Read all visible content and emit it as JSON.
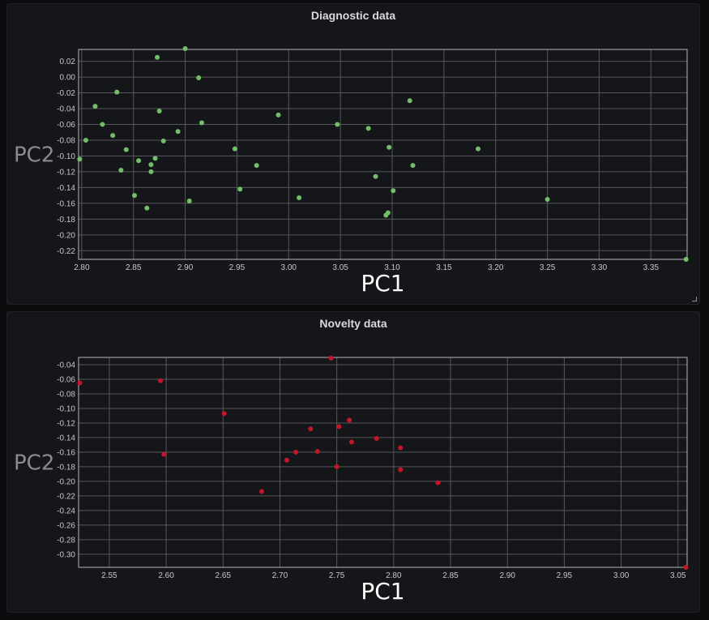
{
  "chart_data": [
    {
      "type": "scatter",
      "title": "Diagnostic data",
      "xlabel": "PC1",
      "ylabel": "PC2",
      "color": "#73bf69",
      "grid": true,
      "xlim": [
        2.797,
        3.385
      ],
      "ylim": [
        -0.231,
        0.035
      ],
      "xticks": [
        "2.80",
        "2.85",
        "2.90",
        "2.95",
        "3.00",
        "3.05",
        "3.10",
        "3.15",
        "3.20",
        "3.25",
        "3.30",
        "3.35"
      ],
      "yticks": [
        "0.02",
        "0.00",
        "-0.02",
        "-0.04",
        "-0.06",
        "-0.08",
        "-0.10",
        "-0.12",
        "-0.14",
        "-0.16",
        "-0.18",
        "-0.20",
        "-0.22"
      ],
      "x": [
        2.798,
        2.804,
        2.813,
        2.82,
        2.83,
        2.834,
        2.838,
        2.843,
        2.851,
        2.855,
        2.863,
        2.867,
        2.867,
        2.871,
        2.873,
        2.875,
        2.879,
        2.893,
        2.9,
        2.904,
        2.913,
        2.916,
        2.948,
        2.953,
        2.969,
        2.99,
        3.01,
        3.047,
        3.077,
        3.084,
        3.094,
        3.096,
        3.097,
        3.101,
        3.117,
        3.12,
        3.183,
        3.25,
        3.384
      ],
      "y": [
        -0.104,
        -0.08,
        -0.037,
        -0.06,
        -0.074,
        -0.019,
        -0.118,
        -0.092,
        -0.15,
        -0.106,
        -0.166,
        -0.111,
        -0.12,
        -0.103,
        0.025,
        -0.043,
        -0.081,
        -0.069,
        0.036,
        -0.157,
        -0.001,
        -0.058,
        -0.091,
        -0.142,
        -0.112,
        -0.048,
        -0.153,
        -0.06,
        -0.065,
        -0.126,
        -0.175,
        -0.172,
        -0.089,
        -0.144,
        -0.03,
        -0.112,
        -0.091,
        -0.155,
        -0.231
      ]
    },
    {
      "type": "scatter",
      "title": "Novelty data",
      "xlabel": "PC1",
      "ylabel": "PC2",
      "color": "#c4162a",
      "grid": true,
      "xlim": [
        2.523,
        3.058
      ],
      "ylim": [
        -0.318,
        -0.03
      ],
      "xticks": [
        "2.55",
        "2.60",
        "2.65",
        "2.70",
        "2.75",
        "2.80",
        "2.85",
        "2.90",
        "2.95",
        "3.00",
        "3.05"
      ],
      "yticks": [
        "-0.04",
        "-0.06",
        "-0.08",
        "-0.10",
        "-0.12",
        "-0.14",
        "-0.16",
        "-0.18",
        "-0.20",
        "-0.22",
        "-0.24",
        "-0.26",
        "-0.28",
        "-0.30"
      ],
      "x": [
        2.524,
        2.595,
        2.598,
        2.651,
        2.684,
        2.706,
        2.714,
        2.727,
        2.733,
        2.745,
        2.75,
        2.752,
        2.761,
        2.763,
        2.785,
        2.806,
        2.806,
        2.839,
        3.057
      ],
      "y": [
        -0.065,
        -0.062,
        -0.163,
        -0.107,
        -0.214,
        -0.171,
        -0.16,
        -0.128,
        -0.159,
        -0.031,
        -0.18,
        -0.125,
        -0.116,
        -0.146,
        -0.141,
        -0.154,
        -0.184,
        -0.202,
        -0.318
      ]
    }
  ]
}
